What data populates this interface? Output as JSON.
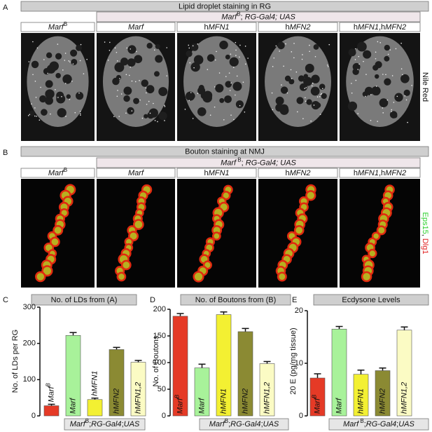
{
  "panels": [
    {
      "label": "A",
      "header": "Lipid droplet staining in RG",
      "subheader": [
        {
          "t": "Marf",
          "s": "i"
        },
        {
          "t": "B",
          "s": "sup"
        },
        {
          "t": "; "
        },
        {
          "t": "RG-Gal4; UAS",
          "s": "i"
        }
      ],
      "columns": [
        [
          {
            "t": "Marf",
            "s": "i"
          },
          {
            "t": "B",
            "s": "sup"
          }
        ],
        [
          {
            "t": "Marf",
            "s": "i"
          }
        ],
        [
          {
            "t": "h"
          },
          {
            "t": "MFN1",
            "s": "i"
          }
        ],
        [
          {
            "t": "h"
          },
          {
            "t": "MFN2",
            "s": "i"
          }
        ],
        [
          {
            "t": "h"
          },
          {
            "t": "MFN1",
            "s": "i"
          },
          {
            "t": ",h"
          },
          {
            "t": "MFN2",
            "s": "i"
          }
        ]
      ],
      "stain": [
        {
          "t": "Nile Red"
        }
      ]
    },
    {
      "label": "B",
      "header": "Bouton staining at NMJ",
      "subheader": [
        {
          "t": "Marf",
          "s": "i"
        },
        {
          "t": " B",
          "s": "sup"
        },
        {
          "t": "; "
        },
        {
          "t": "RG-Gal4; UAS",
          "s": "i"
        }
      ],
      "columns": [
        [
          {
            "t": "Marf",
            "s": "i"
          },
          {
            "t": "B",
            "s": "sup"
          }
        ],
        [
          {
            "t": "Marf",
            "s": "i"
          }
        ],
        [
          {
            "t": "h"
          },
          {
            "t": "MFN1",
            "s": "i"
          }
        ],
        [
          {
            "t": "h"
          },
          {
            "t": "MFN2",
            "s": "i"
          }
        ],
        [
          {
            "t": "h"
          },
          {
            "t": "MFN1",
            "s": "i"
          },
          {
            "t": ",h"
          },
          {
            "t": "MFN2",
            "s": "i"
          }
        ]
      ],
      "stain": [
        {
          "t": "Eps15",
          "c": "#2fd12f"
        },
        {
          "t": ", "
        },
        {
          "t": "Dlg1",
          "c": "#e02020"
        }
      ]
    }
  ],
  "chart_data": [
    {
      "type": "bar",
      "label": "C",
      "title": "No. of LDs from (A)",
      "y_label": "No. of LDs per RG",
      "categories": [
        "Marf",
        "Marf",
        "hMFN1",
        "hMFN2",
        "hMFN1,2"
      ],
      "superscripts": [
        "B",
        null,
        null,
        null,
        null
      ],
      "values": [
        28,
        222,
        45,
        183,
        148
      ],
      "errors": [
        4,
        8,
        4,
        6,
        5
      ],
      "colors": [
        "#e53a26",
        "#a8f29a",
        "#f3f032",
        "#8b8a33",
        "#fbfbc4"
      ],
      "ylim": [
        0,
        300
      ],
      "yticks": [
        0,
        100,
        200,
        300
      ],
      "genotype": [
        {
          "t": "Marf",
          "s": "i"
        },
        {
          "t": "B",
          "s": "sup"
        },
        {
          "t": ";"
        },
        {
          "t": "RG-Gal4",
          "s": "i"
        },
        {
          "t": ";"
        },
        {
          "t": "UAS",
          "s": "i"
        }
      ]
    },
    {
      "type": "bar",
      "label": "D",
      "title": "No. of Boutons from (B)",
      "y_label": "No. of Boutons",
      "categories": [
        "Marf",
        "Marf",
        "hMFN1",
        "hMFN2",
        "hMFN1,2"
      ],
      "superscripts": [
        "B",
        null,
        null,
        null,
        null
      ],
      "values": [
        187,
        90,
        190,
        158,
        98
      ],
      "errors": [
        5,
        7,
        5,
        6,
        4
      ],
      "colors": [
        "#e53a26",
        "#a8f29a",
        "#f3f032",
        "#8b8a33",
        "#fbfbc4"
      ],
      "ylim": [
        0,
        200
      ],
      "yticks": [
        0,
        50,
        100,
        150,
        200
      ],
      "genotype": [
        {
          "t": "Marf",
          "s": "i"
        },
        {
          "t": "B",
          "s": "sup"
        },
        {
          "t": ";"
        },
        {
          "t": "RG-Gal4",
          "s": "i"
        },
        {
          "t": ";"
        },
        {
          "t": "UAS",
          "s": "i"
        }
      ]
    },
    {
      "type": "bar",
      "label": "E",
      "title": "Ecdysone Levels",
      "y_label": "20 E (pg/mg tissue)",
      "categories": [
        "Marf",
        "Marf",
        "hMFN1",
        "hMFN2",
        "hMFN1,2"
      ],
      "superscripts": [
        "B",
        null,
        null,
        null,
        null
      ],
      "values": [
        7.2,
        16.5,
        7.9,
        8.6,
        16.3
      ],
      "errors": [
        0.8,
        0.5,
        0.8,
        0.5,
        0.6
      ],
      "colors": [
        "#e53a26",
        "#a8f29a",
        "#f3f032",
        "#8b8a33",
        "#fbfbc4"
      ],
      "ylim": [
        0,
        20
      ],
      "yticks": [
        0,
        10,
        20
      ],
      "genotype": [
        {
          "t": "Marf",
          "s": "i"
        },
        {
          "t": " B",
          "s": "sup"
        },
        {
          "t": ";"
        },
        {
          "t": "RG-Gal4",
          "s": "i"
        },
        {
          "t": ";"
        },
        {
          "t": "UAS",
          "s": "i"
        }
      ]
    }
  ]
}
